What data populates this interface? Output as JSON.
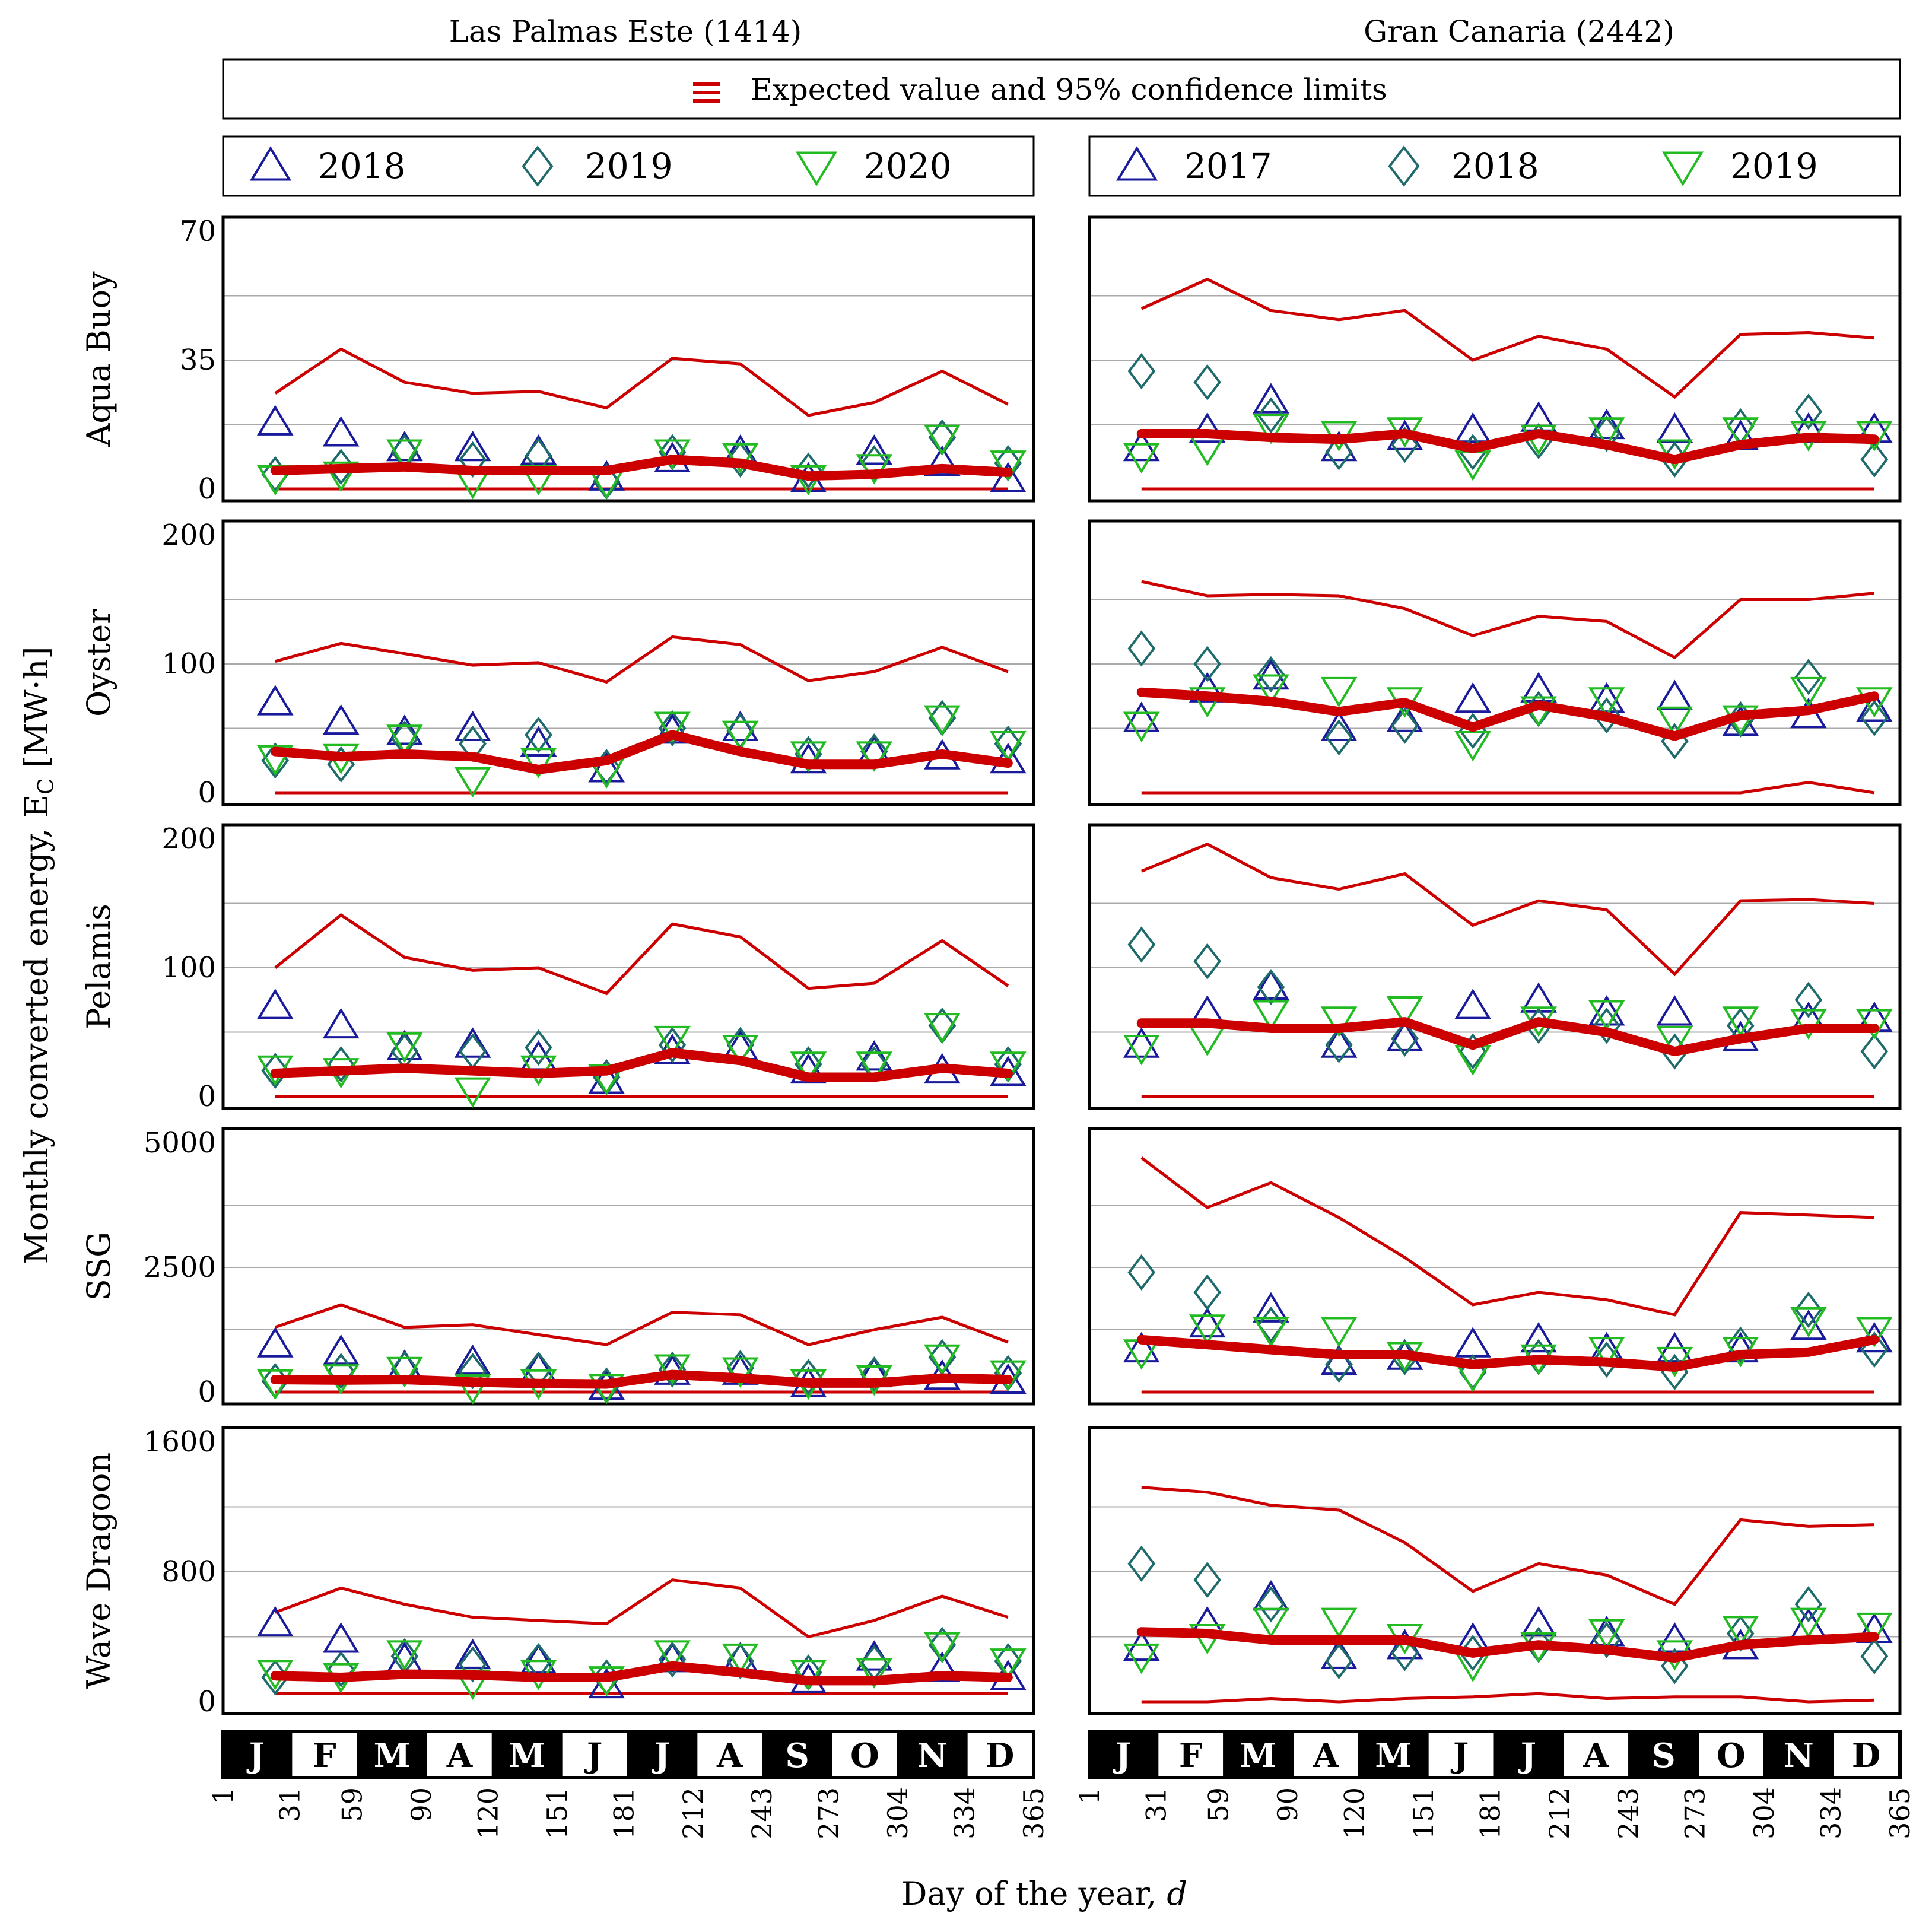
{
  "figure": {
    "y_axis_label": "Monthly converted energy, E",
    "y_axis_label_sub": "C",
    "y_axis_label_unit": " [MW·h]",
    "x_axis_label": "Day of the year, ",
    "x_axis_label_var": "d",
    "shared_legend": "Expected value and 95% confidence limits",
    "colors": {
      "expected": "#cc0000",
      "limits": "#cc0000",
      "triangle_up": "#1a1a9c",
      "diamond": "#1f6b6b",
      "triangle_down": "#22bb22",
      "grid": "#aaaaaa"
    },
    "months": [
      "J",
      "F",
      "M",
      "A",
      "M",
      "J",
      "J",
      "A",
      "S",
      "O",
      "N",
      "D"
    ],
    "day_ticks": [
      "1",
      "31",
      "59",
      "90",
      "120",
      "151",
      "181",
      "212",
      "243",
      "273",
      "304",
      "334",
      "365"
    ]
  },
  "columns": [
    {
      "title": "Las Palmas Este (1414)",
      "legend": [
        {
          "label": "2018",
          "marker": "triangle_up"
        },
        {
          "label": "2019",
          "marker": "diamond"
        },
        {
          "label": "2020",
          "marker": "triangle_down"
        }
      ]
    },
    {
      "title": "Gran Canaria (2442)",
      "legend": [
        {
          "label": "2017",
          "marker": "triangle_up"
        },
        {
          "label": "2018",
          "marker": "diamond"
        },
        {
          "label": "2019",
          "marker": "triangle_down"
        }
      ]
    }
  ],
  "chart_data": [
    {
      "type": "line",
      "row": "Aqua Buoy",
      "station": "Las Palmas Este (1414)",
      "ylim": [
        0,
        70
      ],
      "yticks": [
        "0",
        "35",
        "70"
      ],
      "x": [
        15,
        45,
        74,
        105,
        135,
        166,
        196,
        227,
        258,
        288,
        319,
        349
      ],
      "expected": [
        5,
        5.5,
        6,
        5,
        5,
        5,
        8,
        7,
        3.5,
        4,
        5.5,
        4.5
      ],
      "upper": [
        26,
        38,
        29,
        26,
        26.5,
        22,
        35.5,
        34,
        20,
        23.5,
        32,
        23
      ],
      "lower": [
        0,
        0,
        0,
        0,
        0,
        0,
        0,
        0,
        0,
        0,
        0,
        0
      ],
      "series": [
        {
          "name": "2018",
          "values": [
            18,
            15,
            11,
            11,
            10,
            3,
            8,
            10,
            2.5,
            10,
            7,
            2.5
          ]
        },
        {
          "name": "2019",
          "values": [
            4,
            6,
            10,
            8,
            9,
            2,
            10,
            8,
            5,
            7,
            14,
            7
          ]
        },
        {
          "name": "2020",
          "values": [
            3,
            4,
            10,
            2,
            3,
            2,
            10,
            9,
            3,
            6,
            14,
            7
          ]
        }
      ]
    },
    {
      "type": "line",
      "row": "Aqua Buoy",
      "station": "Gran Canaria (2442)",
      "ylim": [
        0,
        70
      ],
      "yticks": [
        "0",
        "35",
        "70"
      ],
      "x": [
        15,
        45,
        74,
        105,
        135,
        166,
        196,
        227,
        258,
        288,
        319,
        349
      ],
      "expected": [
        15,
        15,
        14,
        13.5,
        15,
        11,
        15,
        12,
        8,
        12,
        14,
        13.5
      ],
      "upper": [
        49,
        57,
        48.5,
        46,
        48.5,
        35,
        41.5,
        38,
        25,
        42,
        42.5,
        41
      ],
      "lower": [
        0,
        0,
        0,
        0,
        0,
        0,
        0,
        0,
        0,
        0,
        0,
        0
      ],
      "series": [
        {
          "name": "2017",
          "values": [
            11,
            16,
            24,
            11,
            14,
            16,
            19,
            17,
            16,
            14,
            16,
            16
          ]
        },
        {
          "name": "2018",
          "values": [
            32,
            29,
            20,
            10,
            12,
            10,
            13,
            15,
            8,
            17,
            21,
            8
          ]
        },
        {
          "name": "2019",
          "values": [
            9,
            11,
            17,
            15,
            16,
            7,
            14,
            16,
            10,
            16,
            15,
            15
          ]
        }
      ]
    },
    {
      "type": "line",
      "row": "Oyster",
      "station": "Las Palmas Este (1414)",
      "ylim": [
        0,
        200
      ],
      "yticks": [
        "0",
        "100",
        "200"
      ],
      "x": [
        15,
        45,
        74,
        105,
        135,
        166,
        196,
        227,
        258,
        288,
        319,
        349
      ],
      "expected": [
        32,
        28,
        30,
        28,
        18,
        25,
        45,
        32,
        22,
        22,
        30,
        23
      ],
      "upper": [
        102,
        116,
        108,
        99,
        101,
        86,
        121,
        115,
        87,
        94,
        113,
        94
      ],
      "lower": [
        0,
        0,
        0,
        0,
        0,
        0,
        0,
        0,
        0,
        0,
        0,
        0
      ],
      "series": [
        {
          "name": "2018",
          "values": [
            70,
            55,
            47,
            50,
            38,
            18,
            48,
            50,
            25,
            31,
            28,
            25
          ]
        },
        {
          "name": "2019",
          "values": [
            25,
            22,
            42,
            38,
            45,
            20,
            50,
            48,
            30,
            32,
            58,
            38
          ]
        },
        {
          "name": "2020",
          "values": [
            27,
            28,
            43,
            10,
            25,
            17,
            53,
            46,
            30,
            30,
            58,
            38
          ]
        }
      ]
    },
    {
      "type": "line",
      "row": "Oyster",
      "station": "Gran Canaria (2442)",
      "ylim": [
        0,
        200
      ],
      "yticks": [
        "0",
        "100",
        "200"
      ],
      "x": [
        15,
        45,
        74,
        105,
        135,
        166,
        196,
        227,
        258,
        288,
        319,
        349
      ],
      "expected": [
        78,
        75,
        71,
        63,
        70,
        51,
        68,
        59,
        44,
        60,
        64,
        75
      ],
      "upper": [
        164,
        153,
        154,
        153,
        143,
        122,
        137,
        133,
        105,
        150,
        150,
        155
      ],
      "lower": [
        0,
        0,
        0,
        0,
        0,
        0,
        0,
        0,
        0,
        0,
        8,
        0
      ],
      "series": [
        {
          "name": "2017",
          "values": [
            57,
            80,
            90,
            50,
            57,
            72,
            80,
            72,
            74,
            54,
            60,
            65
          ]
        },
        {
          "name": "2018",
          "values": [
            112,
            100,
            92,
            43,
            52,
            48,
            65,
            60,
            40,
            57,
            90,
            58
          ]
        },
        {
          "name": "2019",
          "values": [
            53,
            72,
            82,
            80,
            72,
            38,
            65,
            72,
            57,
            58,
            80,
            72
          ]
        }
      ]
    },
    {
      "type": "line",
      "row": "Pelamis",
      "station": "Las Palmas Este (1414)",
      "ylim": [
        0,
        200
      ],
      "yticks": [
        "0",
        "100",
        "200"
      ],
      "x": [
        15,
        45,
        74,
        105,
        135,
        166,
        196,
        227,
        258,
        288,
        319,
        349
      ],
      "expected": [
        18,
        20,
        22,
        20,
        18,
        20,
        34,
        28,
        15,
        15,
        22,
        18
      ],
      "upper": [
        100,
        141,
        108,
        98,
        100,
        80,
        134,
        124,
        84,
        88,
        121,
        86
      ],
      "lower": [
        0,
        0,
        0,
        0,
        0,
        0,
        0,
        0,
        0,
        0,
        0,
        0
      ],
      "series": [
        {
          "name": "2018",
          "values": [
            70,
            55,
            38,
            40,
            30,
            12,
            35,
            38,
            20,
            30,
            20,
            18
          ]
        },
        {
          "name": "2019",
          "values": [
            20,
            25,
            35,
            35,
            38,
            15,
            40,
            40,
            25,
            25,
            55,
            25
          ]
        },
        {
          "name": "2020",
          "values": [
            22,
            20,
            40,
            5,
            22,
            15,
            45,
            38,
            25,
            25,
            55,
            25
          ]
        }
      ]
    },
    {
      "type": "line",
      "row": "Pelamis",
      "station": "Gran Canaria (2442)",
      "ylim": [
        0,
        200
      ],
      "yticks": [
        "0",
        "100",
        "200"
      ],
      "x": [
        15,
        45,
        74,
        105,
        135,
        166,
        196,
        227,
        258,
        288,
        319,
        349
      ],
      "expected": [
        57,
        57,
        53,
        53,
        58,
        40,
        58,
        50,
        35,
        45,
        53,
        53
      ],
      "upper": [
        175,
        196,
        170,
        161,
        173,
        133,
        152,
        145,
        95,
        152,
        153,
        150
      ],
      "lower": [
        0,
        0,
        0,
        0,
        0,
        0,
        0,
        0,
        0,
        0,
        0,
        0
      ],
      "series": [
        {
          "name": "2017",
          "values": [
            40,
            65,
            85,
            40,
            45,
            70,
            75,
            65,
            65,
            45,
            60,
            60
          ]
        },
        {
          "name": "2018",
          "values": [
            118,
            105,
            85,
            40,
            45,
            35,
            55,
            55,
            35,
            55,
            75,
            35
          ]
        },
        {
          "name": "2019",
          "values": [
            38,
            45,
            65,
            60,
            68,
            30,
            60,
            65,
            45,
            60,
            58,
            58
          ]
        }
      ]
    },
    {
      "type": "line",
      "row": "SSG",
      "station": "Las Palmas Este (1414)",
      "ylim": [
        0,
        5000
      ],
      "yticks": [
        "0",
        "2500",
        "5000"
      ],
      "x": [
        15,
        45,
        74,
        105,
        135,
        166,
        196,
        227,
        258,
        288,
        319,
        349
      ],
      "expected": [
        250,
        240,
        250,
        200,
        170,
        160,
        350,
        280,
        180,
        180,
        280,
        250
      ],
      "upper": [
        1300,
        1750,
        1300,
        1350,
        1150,
        950,
        1600,
        1550,
        950,
        1250,
        1500,
        1000
      ],
      "lower": [
        0,
        0,
        0,
        0,
        0,
        0,
        0,
        0,
        0,
        0,
        0,
        0
      ],
      "series": [
        {
          "name": "2018",
          "values": [
            950,
            800,
            500,
            600,
            450,
            100,
            400,
            400,
            150,
            350,
            300,
            220
          ]
        },
        {
          "name": "2019",
          "values": [
            220,
            420,
            460,
            420,
            450,
            130,
            450,
            480,
            300,
            350,
            700,
            380
          ]
        },
        {
          "name": "2020",
          "values": [
            200,
            300,
            450,
            100,
            200,
            110,
            500,
            440,
            200,
            280,
            700,
            380
          ]
        }
      ]
    },
    {
      "type": "line",
      "row": "SSG",
      "station": "Gran Canaria (2442)",
      "ylim": [
        0,
        5000
      ],
      "yticks": [
        "0",
        "2500",
        "5000"
      ],
      "x": [
        15,
        45,
        74,
        105,
        135,
        166,
        196,
        227,
        258,
        288,
        319,
        349
      ],
      "expected": [
        1050,
        950,
        850,
        750,
        750,
        550,
        650,
        600,
        500,
        750,
        800,
        1050
      ],
      "upper": [
        4700,
        3700,
        4200,
        3500,
        2700,
        1750,
        2000,
        1850,
        1550,
        3600,
        3550,
        3500
      ],
      "lower": [
        0,
        0,
        0,
        0,
        0,
        0,
        0,
        0,
        0,
        0,
        0,
        0
      ],
      "series": [
        {
          "name": "2017",
          "values": [
            850,
            1350,
            1650,
            600,
            700,
            950,
            1050,
            850,
            850,
            850,
            1300,
            1050
          ]
        },
        {
          "name": "2018",
          "values": [
            2400,
            2000,
            1350,
            550,
            700,
            400,
            700,
            650,
            400,
            950,
            1650,
            850
          ]
        },
        {
          "name": "2019",
          "values": [
            800,
            1300,
            1250,
            1250,
            750,
            350,
            700,
            850,
            650,
            850,
            1450,
            1250
          ]
        }
      ]
    },
    {
      "type": "line",
      "row": "Wave Dragoon",
      "station": "Las Palmas Este (1414)",
      "ylim": [
        0,
        1600
      ],
      "yticks": [
        "0",
        "800",
        "1600"
      ],
      "x": [
        15,
        45,
        74,
        105,
        135,
        166,
        196,
        227,
        258,
        288,
        319,
        349
      ],
      "expected": [
        160,
        150,
        170,
        165,
        150,
        150,
        220,
        180,
        130,
        130,
        160,
        150
      ],
      "upper": [
        550,
        700,
        600,
        520,
        500,
        480,
        750,
        700,
        400,
        500,
        650,
        520
      ],
      "lower": [
        50,
        50,
        50,
        50,
        50,
        50,
        50,
        50,
        50,
        50,
        50,
        50
      ],
      "series": [
        {
          "name": "2018",
          "values": [
            480,
            380,
            260,
            280,
            250,
            100,
            260,
            260,
            130,
            270,
            200,
            150
          ]
        },
        {
          "name": "2019",
          "values": [
            150,
            200,
            280,
            230,
            250,
            150,
            260,
            250,
            180,
            240,
            350,
            250
          ]
        },
        {
          "name": "2020",
          "values": [
            180,
            160,
            300,
            120,
            180,
            140,
            300,
            280,
            180,
            190,
            350,
            250
          ]
        }
      ]
    },
    {
      "type": "line",
      "row": "Wave Dragoon",
      "station": "Gran Canaria (2442)",
      "ylim": [
        0,
        1600
      ],
      "yticks": [
        "0",
        "800",
        "1600"
      ],
      "x": [
        15,
        45,
        74,
        105,
        135,
        166,
        196,
        227,
        258,
        288,
        319,
        349
      ],
      "expected": [
        430,
        420,
        380,
        380,
        380,
        300,
        350,
        320,
        270,
        350,
        380,
        400
      ],
      "upper": [
        1320,
        1290,
        1210,
        1180,
        980,
        680,
        850,
        780,
        600,
        1120,
        1080,
        1090
      ],
      "lower": [
        0,
        0,
        20,
        0,
        20,
        30,
        50,
        20,
        30,
        30,
        0,
        10
      ],
      "series": [
        {
          "name": "2017",
          "values": [
            330,
            480,
            640,
            280,
            340,
            380,
            480,
            420,
            380,
            340,
            470,
            440
          ]
        },
        {
          "name": "2018",
          "values": [
            850,
            750,
            600,
            250,
            300,
            300,
            350,
            380,
            220,
            420,
            600,
            280
          ]
        },
        {
          "name": "2019",
          "values": [
            280,
            400,
            500,
            500,
            400,
            230,
            350,
            430,
            300,
            450,
            500,
            470
          ]
        }
      ]
    }
  ]
}
